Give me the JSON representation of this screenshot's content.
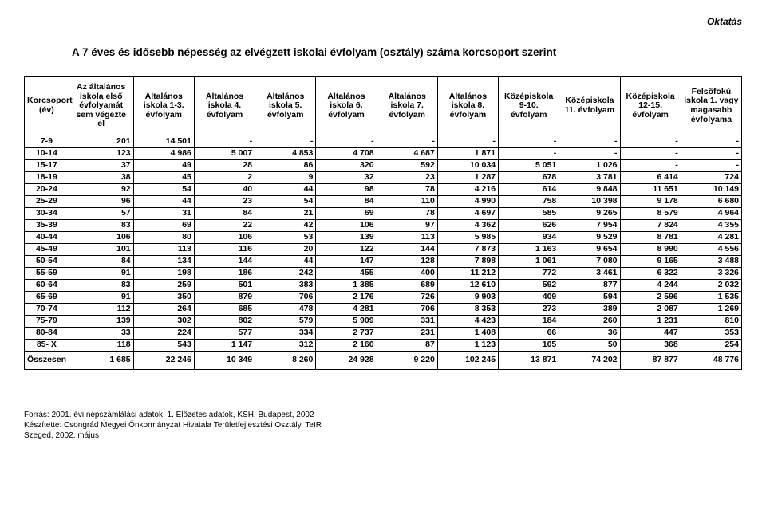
{
  "topRight": "Oktatás",
  "title": "A 7 éves és idősebb népesség az elvégzett iskolai évfolyam (osztály) száma korcsoport szerint",
  "columns": [
    "Korcsoport (év)",
    "Az általános iskola első évfolyamát sem végezte el",
    "Általános iskola 1-3. évfolyam",
    "Általános iskola 4. évfolyam",
    "Általános iskola 5. évfolyam",
    "Általános iskola 6. évfolyam",
    "Általános iskola 7. évfolyam",
    "Általános iskola 8. évfolyam",
    "Középiskola 9-10. évfolyam",
    "Középiskola 11. évfolyam",
    "Középiskola 12-15. évfolyam",
    "Felsőfokú iskola 1. vagy magasabb évfolyama"
  ],
  "rows": [
    [
      "7-9",
      "201",
      "14 501",
      "-",
      "-",
      "-",
      "-",
      "-",
      "-",
      "-",
      "-",
      "-"
    ],
    [
      "10-14",
      "123",
      "4 986",
      "5 007",
      "4 853",
      "4 708",
      "4 687",
      "1 871",
      "-",
      "-",
      "-",
      "-"
    ],
    [
      "15-17",
      "37",
      "49",
      "28",
      "86",
      "320",
      "592",
      "10 034",
      "5 051",
      "1 026",
      "-",
      "-"
    ],
    [
      "18-19",
      "38",
      "45",
      "2",
      "9",
      "32",
      "23",
      "1 287",
      "678",
      "3 781",
      "6 414",
      "724"
    ],
    [
      "20-24",
      "92",
      "54",
      "40",
      "44",
      "98",
      "78",
      "4 216",
      "614",
      "9 848",
      "11 651",
      "10 149"
    ],
    [
      "25-29",
      "96",
      "44",
      "23",
      "54",
      "84",
      "110",
      "4 990",
      "758",
      "10 398",
      "9 178",
      "6 680"
    ],
    [
      "30-34",
      "57",
      "31",
      "84",
      "21",
      "69",
      "78",
      "4 697",
      "585",
      "9 265",
      "8 579",
      "4 964"
    ],
    [
      "35-39",
      "83",
      "69",
      "22",
      "42",
      "106",
      "97",
      "4 362",
      "626",
      "7 954",
      "7 824",
      "4 355"
    ],
    [
      "40-44",
      "106",
      "80",
      "106",
      "53",
      "139",
      "113",
      "5 985",
      "934",
      "9 529",
      "8 781",
      "4 281"
    ],
    [
      "45-49",
      "101",
      "113",
      "116",
      "20",
      "122",
      "144",
      "7 873",
      "1 163",
      "9 654",
      "8 990",
      "4 556"
    ],
    [
      "50-54",
      "84",
      "134",
      "144",
      "44",
      "147",
      "128",
      "7 898",
      "1 061",
      "7 080",
      "9 165",
      "3 488"
    ],
    [
      "55-59",
      "91",
      "198",
      "186",
      "242",
      "455",
      "400",
      "11 212",
      "772",
      "3 461",
      "6 322",
      "3 326"
    ],
    [
      "60-64",
      "83",
      "259",
      "501",
      "383",
      "1 385",
      "689",
      "12 610",
      "592",
      "877",
      "4 244",
      "2 032"
    ],
    [
      "65-69",
      "91",
      "350",
      "879",
      "706",
      "2 176",
      "726",
      "9 903",
      "409",
      "594",
      "2 596",
      "1 535"
    ],
    [
      "70-74",
      "112",
      "264",
      "685",
      "478",
      "4 281",
      "706",
      "8 353",
      "273",
      "389",
      "2 087",
      "1 269"
    ],
    [
      "75-79",
      "139",
      "302",
      "802",
      "579",
      "5 909",
      "331",
      "4 423",
      "184",
      "260",
      "1 231",
      "810"
    ],
    [
      "80-84",
      "33",
      "224",
      "577",
      "334",
      "2 737",
      "231",
      "1 408",
      "66",
      "36",
      "447",
      "353"
    ],
    [
      "85- X",
      "118",
      "543",
      "1 147",
      "312",
      "2 160",
      "87",
      "1 123",
      "105",
      "50",
      "368",
      "254"
    ]
  ],
  "totalRow": [
    "Összesen",
    "1 685",
    "22 246",
    "10 349",
    "8 260",
    "24 928",
    "9 220",
    "102 245",
    "13 871",
    "74 202",
    "87 877",
    "48 776"
  ],
  "footnotes": [
    "Forrás: 2001. évi népszámlálási adatok: 1. Előzetes adatok, KSH, Budapest, 2002",
    "Készítette: Csongrád Megyei Önkormányzat Hivatala Területfejlesztési Osztály, TeIR",
    "Szeged, 2002. május"
  ]
}
